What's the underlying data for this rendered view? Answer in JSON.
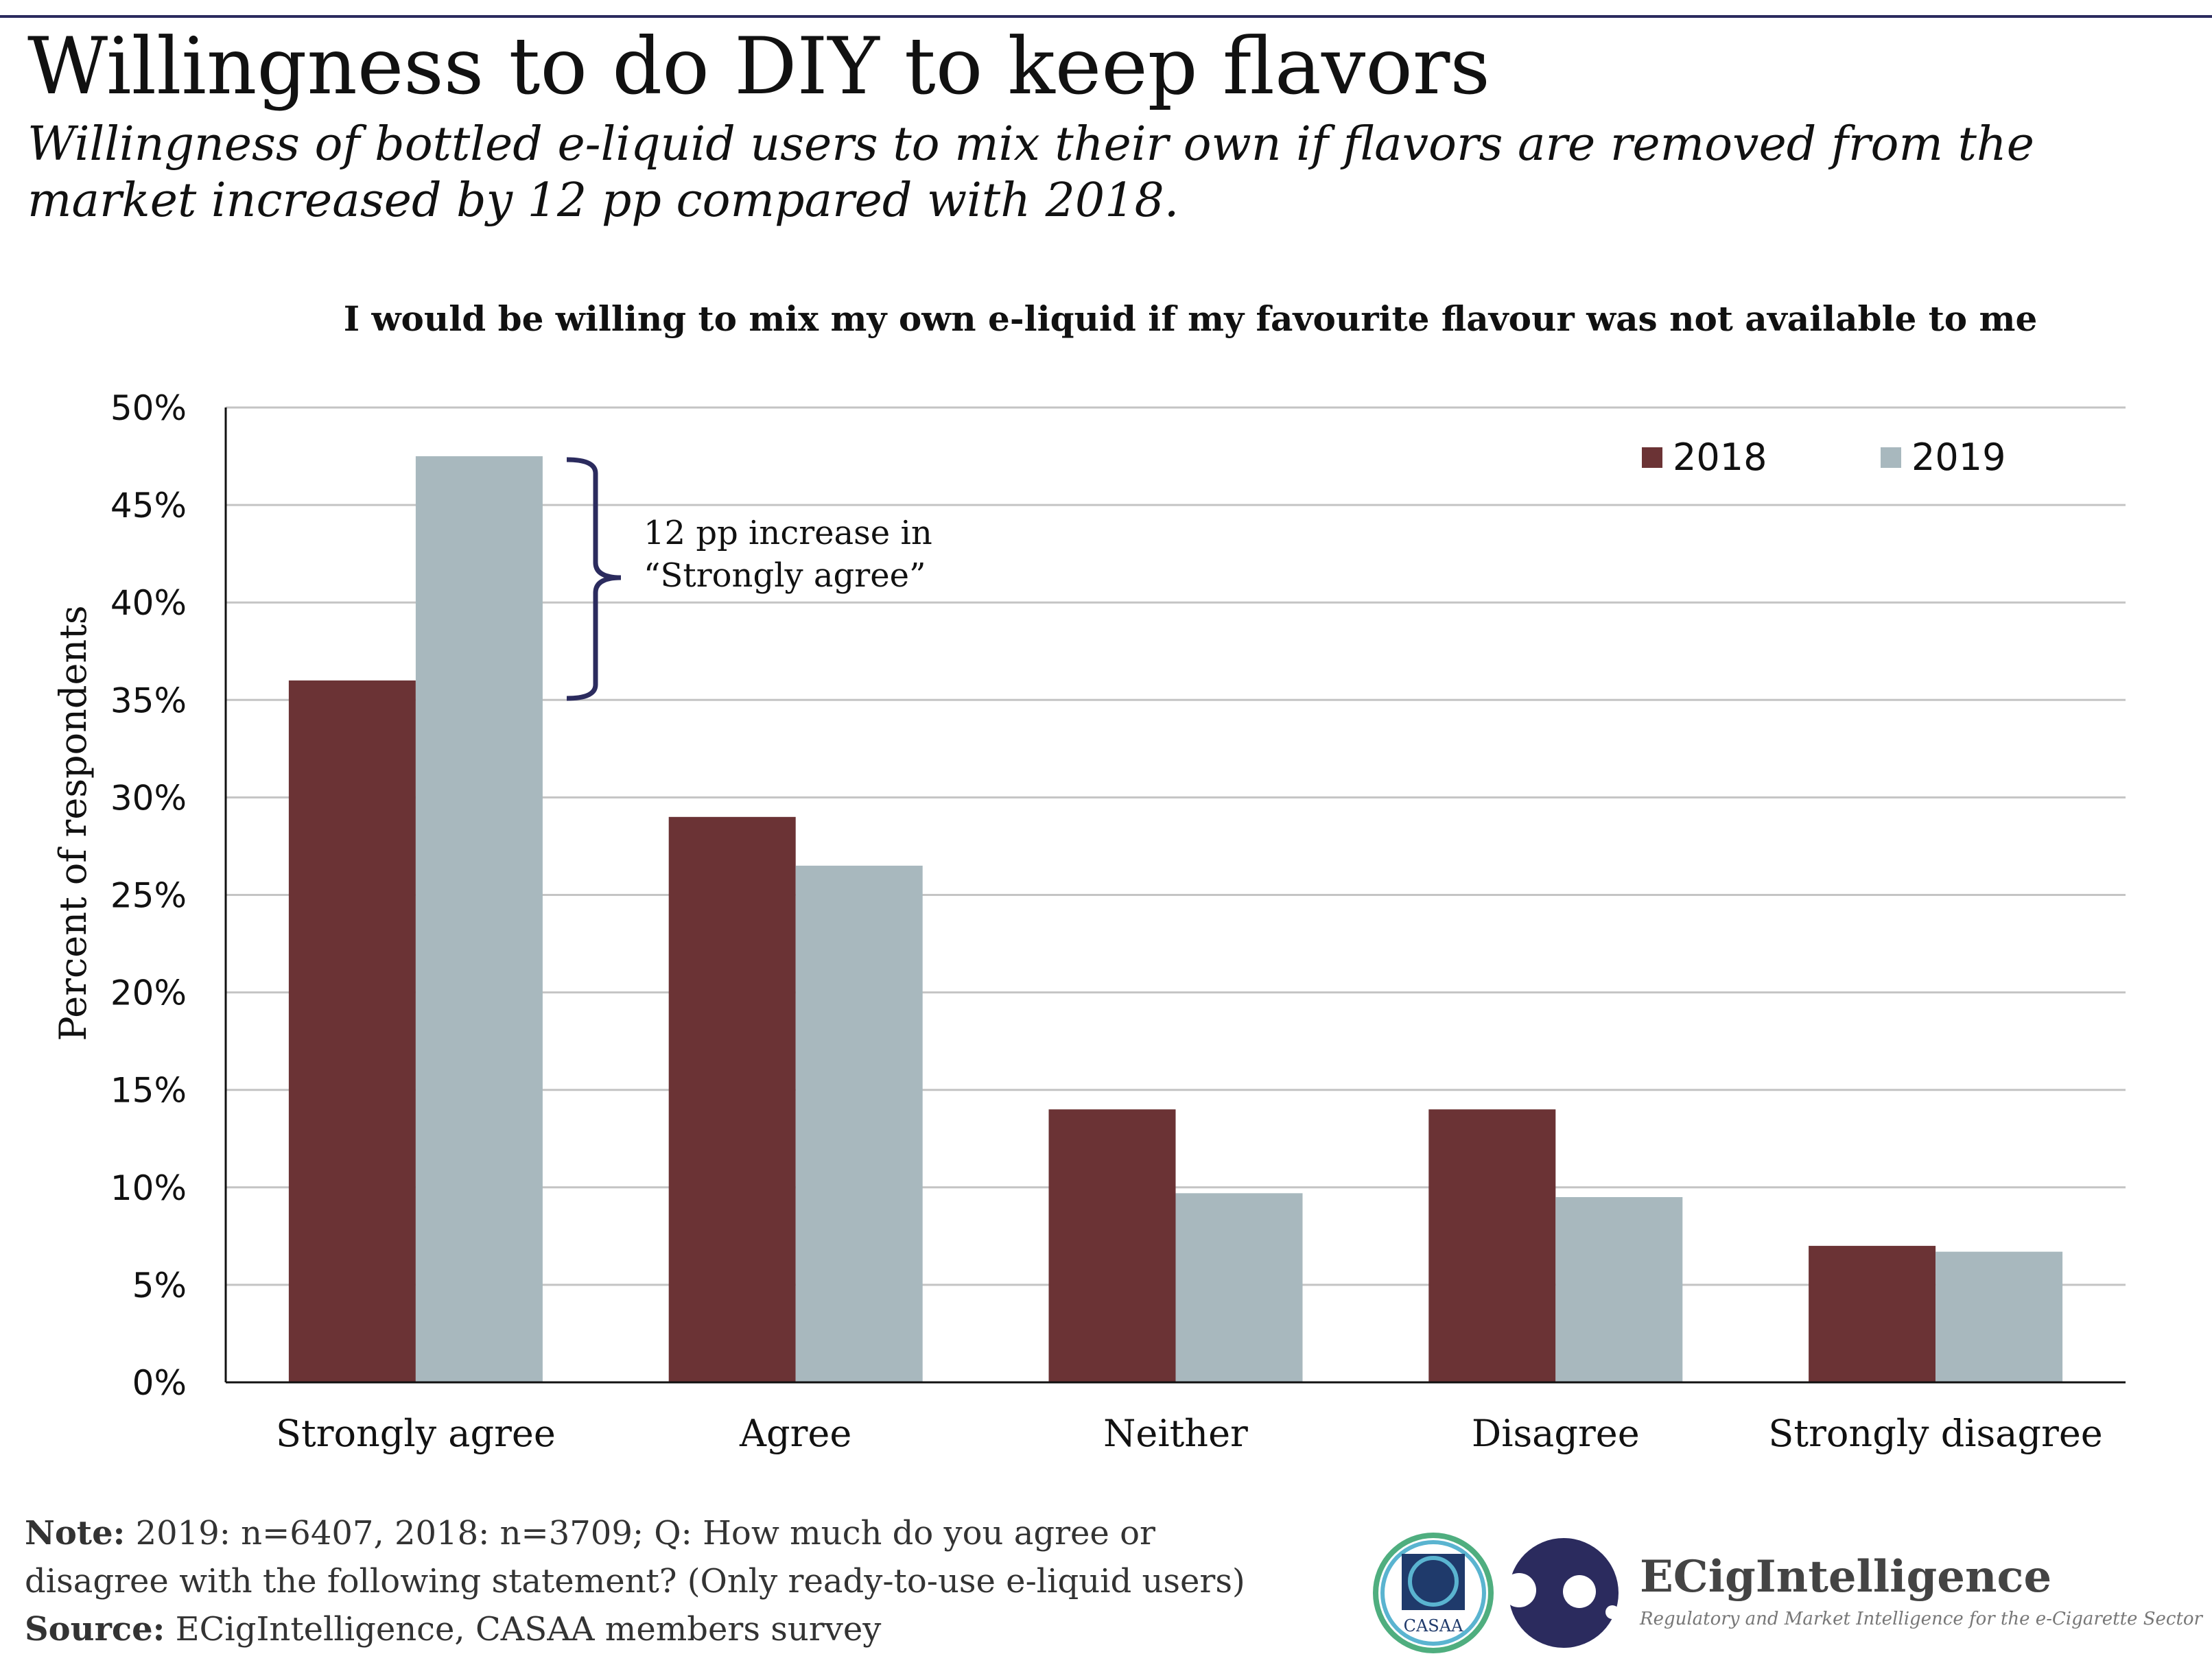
{
  "header": {
    "title": "Willingness to do DIY to keep flavors",
    "subtitle": "Willingness of bottled e-liquid users to mix their own if flavors are removed from the market increased by 12 pp compared with 2018."
  },
  "chart_data": {
    "type": "bar",
    "title": "I would be willing to mix my own e-liquid if my favourite flavour was not available to me",
    "xlabel": "",
    "ylabel": "Percent of respondents",
    "categories": [
      "Strongly agree",
      "Agree",
      "Neither",
      "Disagree",
      "Strongly disagree"
    ],
    "series": [
      {
        "name": "2018",
        "color": "#6b3335",
        "values": [
          36,
          29,
          14,
          14,
          7
        ]
      },
      {
        "name": "2019",
        "color": "#a8b8be",
        "values": [
          47.5,
          26.5,
          9.7,
          9.5,
          6.7
        ]
      }
    ],
    "ylim": [
      0,
      50
    ],
    "yticks": [
      "0%",
      "5%",
      "10%",
      "15%",
      "20%",
      "25%",
      "30%",
      "35%",
      "40%",
      "45%",
      "50%"
    ],
    "grid": true,
    "legend": "top-right",
    "annotation": {
      "line1": "12 pp increase in",
      "line2": "“Strongly agree”",
      "color": "#2b2b5e"
    }
  },
  "footer": {
    "note_label": "Note:",
    "note_text": " 2019: n=6407, 2018: n=3709; Q: How much do you agree or disagree with the following statement? (Only ready-to-use e-liquid users)",
    "source_label": "Source:",
    "source_text": " ECigIntelligence, CASAA members survey",
    "logos": {
      "casaa": "CASAA",
      "brand": "ECigIntelligence",
      "tagline": "Regulatory and Market Intelligence for the e-Cigarette Sector"
    }
  }
}
